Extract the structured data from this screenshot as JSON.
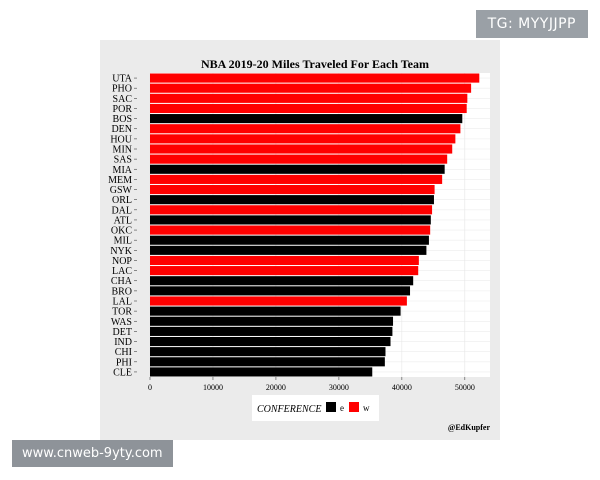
{
  "watermarks": {
    "top": "TG: MYYJJPP",
    "bottom": "www.cnweb-9yty.com"
  },
  "credit": "@EdKupfer",
  "colors": {
    "e": "#000000",
    "w": "#ff0000"
  },
  "chart_data": {
    "type": "bar",
    "orientation": "horizontal",
    "title": "NBA 2019-20 Miles Traveled For Each Team",
    "xlabel": "",
    "ylabel": "",
    "xlim": [
      0,
      54000
    ],
    "xticks": [
      0,
      10000,
      20000,
      30000,
      40000,
      50000
    ],
    "grid": true,
    "legend": {
      "title": "CONFERENCE",
      "position": "bottom",
      "entries": [
        "e",
        "w"
      ]
    },
    "categories": [
      "UTA",
      "PHO",
      "SAC",
      "POR",
      "BOS",
      "DEN",
      "HOU",
      "MIN",
      "SAS",
      "MIA",
      "MEM",
      "GSW",
      "ORL",
      "DAL",
      "ATL",
      "OKC",
      "MIL",
      "NYK",
      "NOP",
      "LAC",
      "CHA",
      "BRO",
      "LAL",
      "TOR",
      "WAS",
      "DET",
      "IND",
      "CHI",
      "PHI",
      "CLE"
    ],
    "values": [
      52300,
      51000,
      50400,
      50300,
      49600,
      49300,
      48500,
      48000,
      47200,
      46800,
      46400,
      45200,
      45100,
      44800,
      44600,
      44500,
      44300,
      43900,
      42700,
      42600,
      41800,
      41300,
      40800,
      39800,
      38600,
      38500,
      38200,
      37400,
      37300,
      35300
    ],
    "conference": [
      "w",
      "w",
      "w",
      "w",
      "e",
      "w",
      "w",
      "w",
      "w",
      "e",
      "w",
      "w",
      "e",
      "w",
      "e",
      "w",
      "e",
      "e",
      "w",
      "w",
      "e",
      "e",
      "w",
      "e",
      "e",
      "e",
      "e",
      "e",
      "e",
      "e"
    ]
  }
}
